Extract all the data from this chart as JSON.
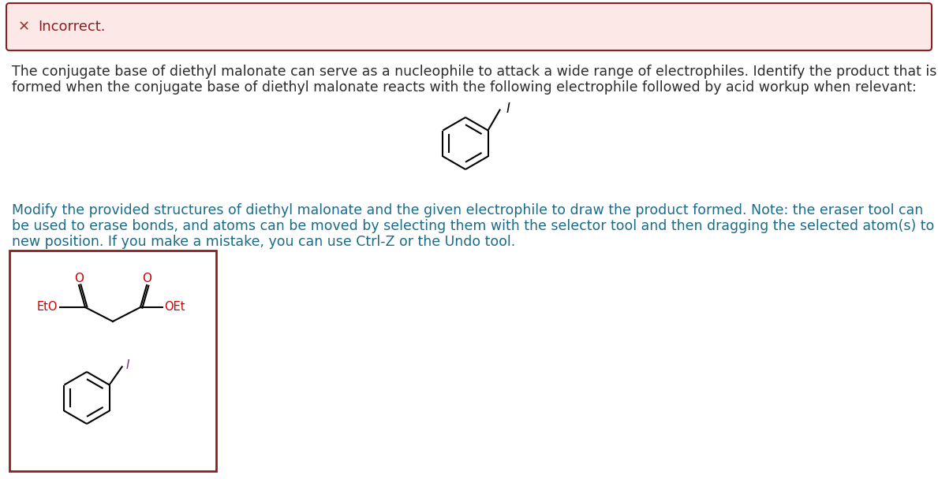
{
  "incorrect_box": {
    "bg_color": "#fce8e6",
    "border_color": "#8b2020",
    "x_color": "#b03030",
    "text": "Incorrect.",
    "text_color": "#8b2020"
  },
  "paragraph1_line1": "The conjugate base of diethyl malonate can serve as a nucleophile to attack a wide range of electrophiles. Identify the product that is",
  "paragraph1_line2": "formed when the conjugate base of diethyl malonate reacts with the following electrophile followed by acid workup when relevant:",
  "paragraph1_color": "#2c2c2c",
  "paragraph2_line1": "Modify the provided structures of diethyl malonate and the given electrophile to draw the product formed. Note: the eraser tool can",
  "paragraph2_line2": "be used to erase bonds, and atoms can be moved by selecting them with the selector tool and then dragging the selected atom(s) to a",
  "paragraph2_line3": "new position. If you make a mistake, you can use Ctrl-Z or the Undo tool.",
  "paragraph2_color": "#1a6b8a",
  "draw_box_border_color": "#8b2020",
  "eto_color": "#cc0000",
  "oet_color": "#cc0000",
  "o_color": "#cc0000",
  "iodine_color_main": "#000000",
  "iodine_color_box": "#7B2D8B",
  "background": "#ffffff",
  "font_size_main": 12.5,
  "font_size_small": 11
}
